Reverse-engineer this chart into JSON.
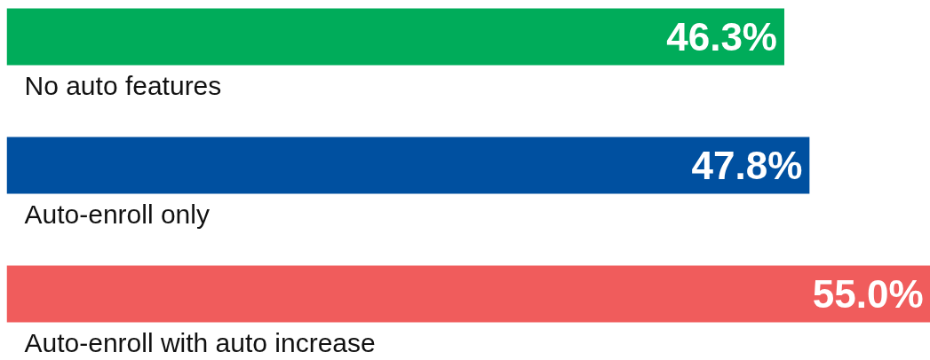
{
  "chart_data": {
    "type": "bar",
    "orientation": "horizontal",
    "categories": [
      "No auto features",
      "Auto-enroll only",
      "Auto-enroll with auto increase"
    ],
    "values": [
      46.3,
      47.8,
      55.0
    ],
    "colors": [
      "#00ac5a",
      "#0050a0",
      "#f05c5c"
    ],
    "value_labels": [
      "46.3%",
      "47.8%",
      "55.0%"
    ]
  }
}
